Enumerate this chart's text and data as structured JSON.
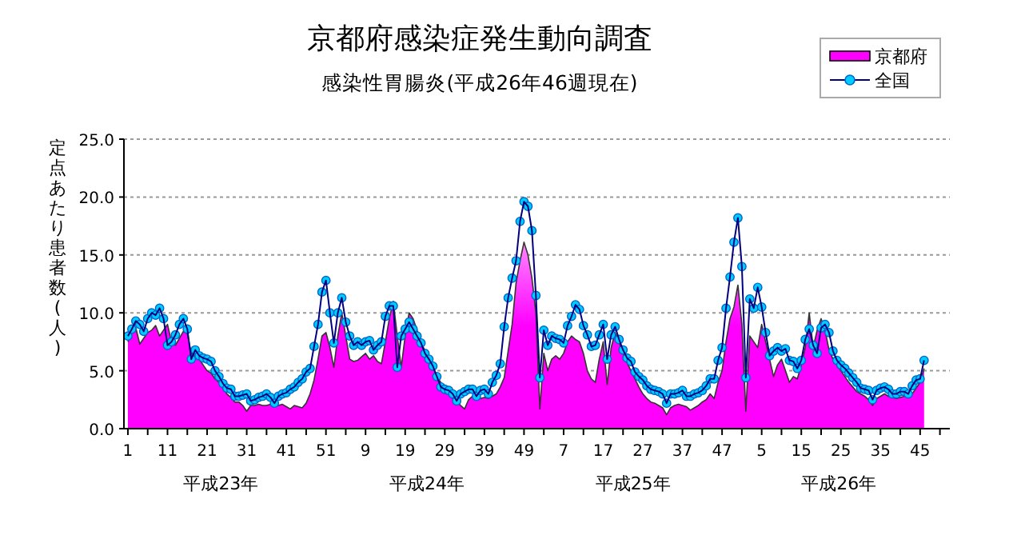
{
  "chart_data": {
    "type": "area",
    "title": "京都府感染症発生動向調査",
    "subtitle": "感染性胃腸炎(平成26年46週現在)",
    "ylabel": "定点あたり患者数(人)",
    "annotations": [
      "平成23年",
      "平成24年",
      "平成25年",
      "平成26年"
    ],
    "categories": [
      "1",
      null,
      null,
      null,
      null,
      null,
      null,
      null,
      null,
      null,
      "11",
      null,
      null,
      null,
      null,
      null,
      null,
      null,
      null,
      null,
      "21",
      null,
      null,
      null,
      null,
      null,
      null,
      null,
      null,
      null,
      "31",
      null,
      null,
      null,
      null,
      null,
      null,
      null,
      null,
      null,
      "41",
      null,
      null,
      null,
      null,
      null,
      null,
      null,
      null,
      null,
      "51",
      null,
      null,
      null,
      null,
      null,
      null,
      null,
      null,
      null,
      "9",
      null,
      null,
      null,
      null,
      null,
      null,
      null,
      null,
      null,
      "19",
      null,
      null,
      null,
      null,
      null,
      null,
      null,
      null,
      null,
      "29",
      null,
      null,
      null,
      null,
      null,
      null,
      null,
      null,
      null,
      "39",
      null,
      null,
      null,
      null,
      null,
      null,
      null,
      null,
      null,
      "49",
      null,
      null,
      null,
      null,
      null,
      null,
      null,
      null,
      null,
      "7",
      null,
      null,
      null,
      null,
      null,
      null,
      null,
      null,
      null,
      "17",
      null,
      null,
      null,
      null,
      null,
      null,
      null,
      null,
      null,
      "27",
      null,
      null,
      null,
      null,
      null,
      null,
      null,
      null,
      null,
      "37",
      null,
      null,
      null,
      null,
      null,
      null,
      null,
      null,
      null,
      "47",
      null,
      null,
      null,
      null,
      null,
      null,
      null,
      null,
      null,
      "5",
      null,
      null,
      null,
      null,
      null,
      null,
      null,
      null,
      null,
      "15",
      null,
      null,
      null,
      null,
      null,
      null,
      null,
      null,
      null,
      "25",
      null,
      null,
      null,
      null,
      null,
      null,
      null,
      null,
      null,
      "35",
      null,
      null,
      null,
      null,
      null,
      null,
      null,
      null,
      null,
      "45",
      null
    ],
    "ylim": [
      0,
      25
    ],
    "yticks": [
      {
        "value": 0,
        "label": "0.0"
      },
      {
        "value": 5,
        "label": "5.0"
      },
      {
        "value": 10,
        "label": "10.0"
      },
      {
        "value": 15,
        "label": "15.0"
      },
      {
        "value": 20,
        "label": "20.0"
      },
      {
        "value": 25,
        "label": "25.0"
      }
    ],
    "grid": "y",
    "legend": "top right",
    "series": [
      {
        "name": "京都府",
        "type": "area",
        "color": "#ff00ff",
        "values": [
          7.5,
          8.5,
          8.7,
          7.3,
          7.8,
          8.3,
          8.5,
          8.9,
          8.0,
          8.5,
          9.0,
          7.5,
          7.2,
          7.8,
          8.4,
          8.2,
          6.5,
          6.3,
          6.0,
          5.5,
          5.0,
          4.8,
          4.3,
          4.0,
          3.6,
          3.0,
          2.7,
          2.3,
          2.3,
          2.0,
          1.5,
          2.0,
          2.0,
          2.1,
          2.0,
          2.0,
          2.1,
          2.0,
          2.0,
          2.1,
          1.9,
          1.7,
          2.0,
          1.9,
          1.8,
          2.2,
          3.0,
          4.2,
          6.0,
          8.0,
          8.3,
          7.0,
          5.3,
          8.0,
          10.0,
          8.0,
          6.0,
          5.8,
          5.9,
          6.2,
          6.5,
          6.0,
          6.3,
          5.8,
          5.6,
          7.5,
          9.5,
          11.0,
          8.0,
          5.3,
          8.0,
          10.0,
          9.5,
          8.5,
          7.5,
          6.7,
          6.0,
          5.3,
          4.5,
          4.0,
          3.4,
          3.0,
          2.6,
          2.4,
          2.0,
          1.7,
          2.5,
          2.8,
          2.5,
          2.6,
          2.7,
          2.6,
          2.8,
          3.0,
          3.6,
          4.4,
          6.7,
          9.0,
          12.6,
          14.5,
          16.1,
          15.0,
          13.0,
          10.0,
          1.7,
          6.5,
          5.0,
          6.0,
          6.3,
          6.0,
          6.5,
          7.5,
          8.0,
          7.7,
          7.5,
          6.5,
          5.0,
          4.3,
          4.0,
          6.0,
          7.5,
          3.8,
          7.0,
          8.3,
          7.5,
          6.5,
          5.7,
          5.0,
          4.3,
          3.6,
          3.0,
          2.6,
          2.3,
          2.2,
          2.0,
          1.8,
          1.2,
          1.8,
          2.0,
          2.1,
          2.0,
          1.9,
          1.6,
          1.8,
          2.0,
          2.3,
          2.5,
          3.0,
          2.6,
          4.0,
          5.0,
          7.5,
          9.5,
          10.5,
          12.4,
          9.0,
          1.5,
          8.0,
          7.5,
          7.0,
          9.0,
          7.5,
          6.0,
          4.5,
          5.5,
          6.0,
          5.0,
          4.0,
          4.5,
          4.3,
          5.5,
          7.0,
          10.0,
          7.0,
          8.5,
          9.5,
          8.5,
          6.8,
          6.0,
          5.5,
          5.0,
          4.5,
          4.0,
          3.6,
          3.2,
          3.0,
          2.8,
          2.5,
          2.0,
          2.6,
          2.8,
          3.0,
          2.8,
          2.7,
          2.6,
          2.7,
          2.8,
          2.8,
          3.0,
          3.5,
          4.0,
          5.2
        ]
      },
      {
        "name": "全国",
        "type": "line",
        "color": "#00ccff",
        "marker": "circle",
        "values": [
          8.0,
          8.6,
          9.3,
          9.0,
          8.4,
          9.5,
          10.0,
          9.8,
          10.4,
          9.5,
          7.2,
          7.5,
          8.1,
          9.0,
          9.5,
          8.6,
          6.0,
          6.8,
          6.3,
          6.1,
          6.0,
          5.8,
          5.0,
          4.5,
          3.9,
          3.5,
          3.4,
          2.8,
          2.8,
          2.9,
          3.0,
          2.4,
          2.5,
          2.7,
          2.8,
          3.0,
          2.7,
          2.2,
          2.8,
          3.0,
          3.1,
          3.4,
          3.6,
          4.0,
          4.3,
          4.9,
          5.2,
          7.1,
          9.0,
          11.8,
          12.8,
          10.0,
          7.4,
          10.0,
          11.3,
          9.2,
          8.0,
          7.2,
          7.5,
          7.2,
          7.5,
          7.6,
          6.8,
          7.2,
          7.5,
          9.7,
          10.6,
          10.6,
          5.3,
          8.0,
          8.6,
          9.2,
          8.6,
          8.0,
          7.4,
          6.5,
          6.0,
          5.4,
          4.5,
          3.6,
          3.4,
          3.3,
          3.0,
          2.4,
          3.0,
          3.2,
          3.4,
          3.4,
          2.8,
          3.3,
          3.4,
          3.0,
          4.0,
          4.6,
          5.6,
          8.8,
          11.3,
          13.0,
          14.5,
          17.9,
          19.6,
          19.2,
          17.1,
          11.5,
          4.4,
          8.5,
          7.2,
          8.0,
          7.8,
          7.7,
          7.4,
          8.9,
          9.7,
          10.7,
          10.3,
          8.9,
          8.1,
          7.1,
          7.2,
          8.1,
          9.0,
          6.0,
          8.1,
          8.8,
          7.7,
          6.8,
          6.1,
          5.8,
          4.9,
          4.5,
          4.2,
          3.7,
          3.4,
          3.3,
          3.2,
          3.0,
          2.2,
          3.0,
          3.0,
          3.1,
          3.3,
          2.8,
          2.8,
          3.0,
          3.1,
          3.3,
          3.7,
          4.3,
          4.3,
          5.9,
          7.0,
          10.4,
          13.1,
          16.1,
          18.2,
          14.0,
          4.4,
          11.2,
          10.4,
          12.2,
          10.5,
          8.3,
          6.3,
          6.7,
          7.0,
          6.7,
          6.9,
          5.9,
          5.8,
          5.2,
          5.9,
          7.7,
          8.6,
          7.2,
          6.5,
          8.7,
          9.0,
          8.3,
          6.7,
          5.9,
          5.5,
          5.2,
          4.8,
          4.4,
          4.0,
          3.5,
          3.4,
          3.3,
          2.5,
          3.3,
          3.5,
          3.6,
          3.4,
          3.0,
          3.0,
          3.2,
          3.2,
          3.0,
          3.7,
          4.2,
          4.3,
          5.9
        ]
      }
    ]
  }
}
